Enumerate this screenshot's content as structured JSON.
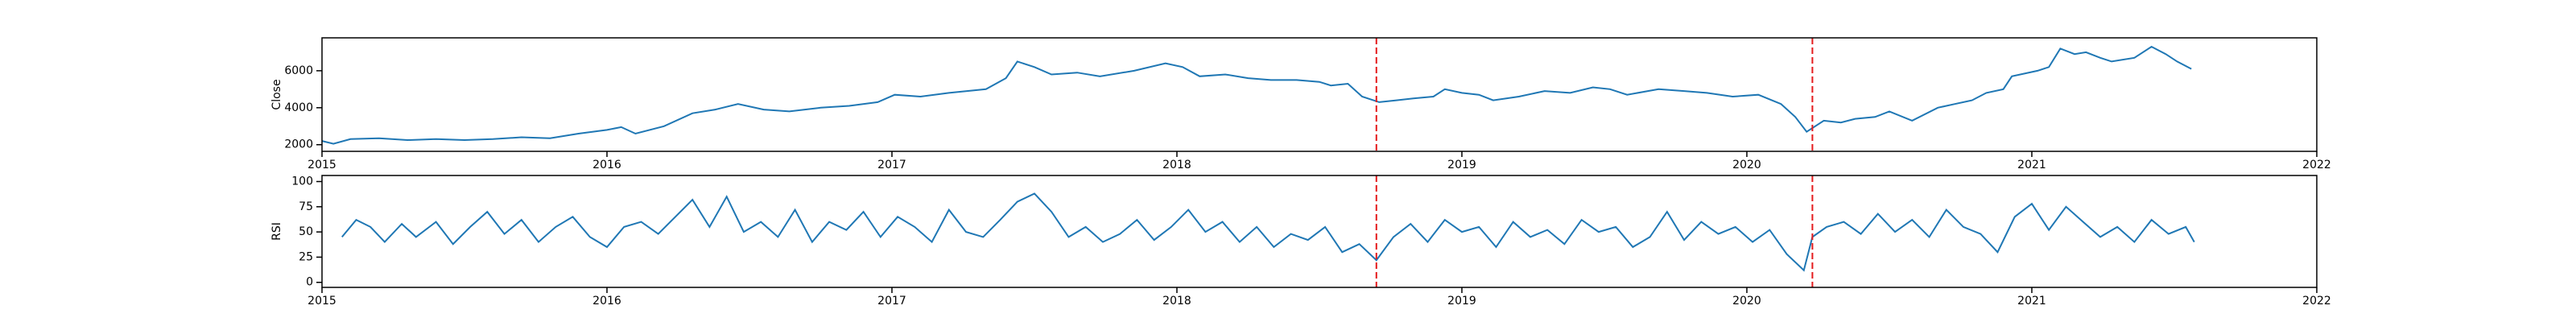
{
  "chart_data": [
    {
      "type": "line",
      "ylabel": "Close",
      "color": "#1f77b4",
      "xlim": [
        2015,
        2022
      ],
      "xticks": [
        2015,
        2016,
        2017,
        2018,
        2019,
        2020,
        2021,
        2022
      ],
      "ylim": [
        1640,
        7780
      ],
      "yticks": [
        2000,
        4000,
        6000
      ],
      "vlines": [
        2018.7,
        2020.23
      ],
      "vline_color": "#e41a1c",
      "x": [
        2015.0,
        2015.04,
        2015.1,
        2015.2,
        2015.3,
        2015.4,
        2015.5,
        2015.6,
        2015.7,
        2015.8,
        2015.9,
        2016.0,
        2016.05,
        2016.1,
        2016.2,
        2016.3,
        2016.38,
        2016.46,
        2016.55,
        2016.64,
        2016.75,
        2016.85,
        2016.95,
        2017.01,
        2017.1,
        2017.2,
        2017.33,
        2017.4,
        2017.44,
        2017.5,
        2017.56,
        2017.65,
        2017.73,
        2017.85,
        2017.96,
        2018.02,
        2018.08,
        2018.17,
        2018.25,
        2018.33,
        2018.42,
        2018.5,
        2018.54,
        2018.6,
        2018.65,
        2018.71,
        2018.77,
        2018.83,
        2018.9,
        2018.94,
        2019.0,
        2019.06,
        2019.11,
        2019.2,
        2019.29,
        2019.38,
        2019.46,
        2019.52,
        2019.58,
        2019.69,
        2019.78,
        2019.86,
        2019.95,
        2020.04,
        2020.12,
        2020.17,
        2020.21,
        2020.27,
        2020.33,
        2020.38,
        2020.45,
        2020.5,
        2020.58,
        2020.67,
        2020.73,
        2020.79,
        2020.84,
        2020.9,
        2020.93,
        2021.02,
        2021.06,
        2021.1,
        2021.15,
        2021.19,
        2021.24,
        2021.28,
        2021.36,
        2021.42,
        2021.47,
        2021.51,
        2021.56
      ],
      "values": [
        2200,
        2050,
        2300,
        2350,
        2250,
        2300,
        2250,
        2300,
        2400,
        2350,
        2600,
        2800,
        2950,
        2600,
        3000,
        3700,
        3900,
        4200,
        3900,
        3800,
        4000,
        4100,
        4300,
        4700,
        4600,
        4800,
        5000,
        5600,
        6500,
        6200,
        5800,
        5900,
        5700,
        6000,
        6400,
        6200,
        5700,
        5800,
        5600,
        5500,
        5500,
        5400,
        5200,
        5300,
        4600,
        4300,
        4400,
        4500,
        4600,
        5000,
        4800,
        4700,
        4400,
        4600,
        4900,
        4800,
        5100,
        5000,
        4700,
        5000,
        4900,
        4800,
        4600,
        4700,
        4200,
        3500,
        2700,
        3300,
        3200,
        3400,
        3500,
        3800,
        3300,
        4000,
        4200,
        4400,
        4800,
        5000,
        5700,
        6000,
        6200,
        7200,
        6900,
        7000,
        6700,
        6500,
        6700,
        7300,
        6900,
        6500,
        6100
      ]
    },
    {
      "type": "line",
      "ylabel": "RSI",
      "color": "#1f77b4",
      "xlim": [
        2015,
        2022
      ],
      "xticks": [
        2015,
        2016,
        2017,
        2018,
        2019,
        2020,
        2021,
        2022
      ],
      "ylim": [
        -5,
        106
      ],
      "yticks": [
        0,
        25,
        50,
        75,
        100
      ],
      "vlines": [
        2018.7,
        2020.23
      ],
      "vline_color": "#e41a1c",
      "x": [
        2015.07,
        2015.12,
        2015.17,
        2015.22,
        2015.28,
        2015.33,
        2015.4,
        2015.46,
        2015.52,
        2015.58,
        2015.64,
        2015.7,
        2015.76,
        2015.82,
        2015.88,
        2015.94,
        2016.0,
        2016.06,
        2016.12,
        2016.18,
        2016.24,
        2016.3,
        2016.36,
        2016.42,
        2016.48,
        2016.54,
        2016.6,
        2016.66,
        2016.72,
        2016.78,
        2016.84,
        2016.9,
        2016.96,
        2017.02,
        2017.08,
        2017.14,
        2017.2,
        2017.26,
        2017.32,
        2017.38,
        2017.44,
        2017.5,
        2017.56,
        2017.62,
        2017.68,
        2017.74,
        2017.8,
        2017.86,
        2017.92,
        2017.98,
        2018.04,
        2018.1,
        2018.16,
        2018.22,
        2018.28,
        2018.34,
        2018.4,
        2018.46,
        2018.52,
        2018.58,
        2018.64,
        2018.7,
        2018.76,
        2018.82,
        2018.88,
        2018.94,
        2019.0,
        2019.06,
        2019.12,
        2019.18,
        2019.24,
        2019.3,
        2019.36,
        2019.42,
        2019.48,
        2019.54,
        2019.6,
        2019.66,
        2019.72,
        2019.78,
        2019.84,
        2019.9,
        2019.96,
        2020.02,
        2020.08,
        2020.14,
        2020.2,
        2020.23,
        2020.28,
        2020.34,
        2020.4,
        2020.46,
        2020.52,
        2020.58,
        2020.64,
        2020.7,
        2020.76,
        2020.82,
        2020.88,
        2020.94,
        2021.0,
        2021.06,
        2021.12,
        2021.18,
        2021.24,
        2021.3,
        2021.36,
        2021.42,
        2021.48,
        2021.54,
        2021.57
      ],
      "values": [
        45,
        62,
        55,
        40,
        58,
        45,
        60,
        38,
        55,
        70,
        48,
        62,
        40,
        55,
        65,
        45,
        35,
        55,
        60,
        48,
        65,
        82,
        55,
        85,
        50,
        60,
        45,
        72,
        40,
        60,
        52,
        70,
        45,
        65,
        55,
        40,
        72,
        50,
        45,
        62,
        80,
        88,
        70,
        45,
        55,
        40,
        48,
        62,
        42,
        55,
        72,
        50,
        60,
        40,
        55,
        35,
        48,
        42,
        55,
        30,
        38,
        22,
        45,
        58,
        40,
        62,
        50,
        55,
        35,
        60,
        45,
        52,
        38,
        62,
        50,
        55,
        35,
        45,
        70,
        42,
        60,
        48,
        55,
        40,
        52,
        28,
        12,
        45,
        55,
        60,
        48,
        68,
        50,
        62,
        45,
        72,
        55,
        48,
        30,
        65,
        78,
        52,
        75,
        60,
        45,
        55,
        40,
        62,
        48,
        55,
        40
      ]
    }
  ]
}
